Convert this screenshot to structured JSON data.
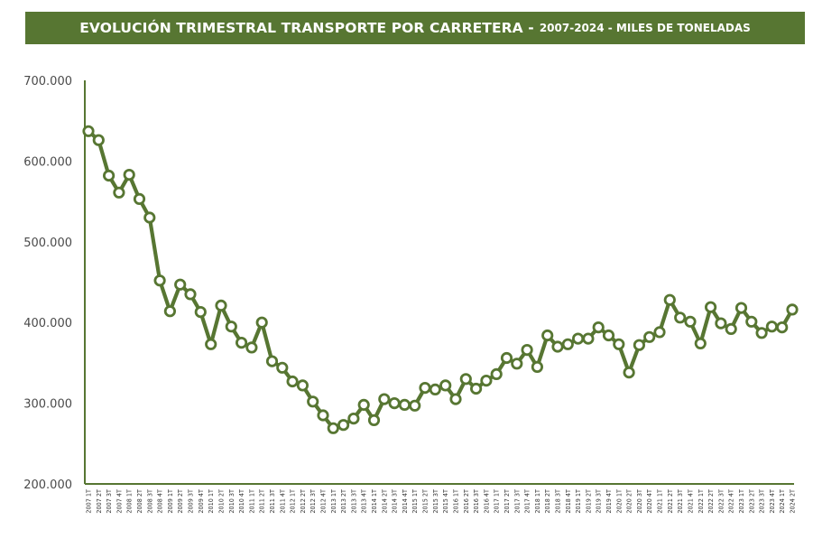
{
  "title": {
    "main": "EVOLUCIÓN TRIMESTRAL TRANSPORTE POR CARRETERA -",
    "sub": "2007-2024 - MILES DE TONELADAS"
  },
  "colors": {
    "banner": "#577632",
    "line": "#577632",
    "marker_fill": "#ffffff"
  },
  "chart_data": {
    "type": "line",
    "ylim": [
      200000,
      700000
    ],
    "yticks": [
      200000,
      300000,
      400000,
      500000,
      600000,
      700000
    ],
    "ytick_labels": [
      "200.000",
      "300.000",
      "400.000",
      "500.000",
      "600.000",
      "700.000"
    ],
    "grid": false,
    "legend": "none",
    "categories": [
      "2007 1T",
      "2007 2T",
      "2007 3T",
      "2007 4T",
      "2008 1T",
      "2008 2T",
      "2008 3T",
      "2008 4T",
      "2009 1T",
      "2009 2T",
      "2009 3T",
      "2009 4T",
      "2010 1T",
      "2010 2T",
      "2010 3T",
      "2010 4T",
      "2011 1T",
      "2011 2T",
      "2011 3T",
      "2011 4T",
      "2012 1T",
      "2012 2T",
      "2012 3T",
      "2012 4T",
      "2013 1T",
      "2013 2T",
      "2013 3T",
      "2013 4T",
      "2014 1T",
      "2014 2T",
      "2014 3T",
      "2014 4T",
      "2015 1T",
      "2015 2T",
      "2015 3T",
      "2015 4T",
      "2016 1T",
      "2016 2T",
      "2016 3T",
      "2016 4T",
      "2017 1T",
      "2017 2T",
      "2017 3T",
      "2017 4T",
      "2018 1T",
      "2018 2T",
      "2018 3T",
      "2018 4T",
      "2019 1T",
      "2019 2T",
      "2019 3T",
      "2019 4T",
      "2020 1T",
      "2020 2T",
      "2020 3T",
      "2020 4T",
      "2021 1T",
      "2021 2T",
      "2021 3T",
      "2021 4T",
      "2022 1T",
      "2022 2T",
      "2022 3T",
      "2022 4T",
      "2023 1T",
      "2023 2T",
      "2023 3T",
      "2023 4T",
      "2024 1T",
      "2024 2T"
    ],
    "series": [
      {
        "values": [
          637000,
          626000,
          582000,
          561000,
          583000,
          553000,
          530000,
          452000,
          414000,
          447000,
          435000,
          413000,
          373000,
          421000,
          395000,
          375000,
          369000,
          400000,
          352000,
          344000,
          327000,
          322000,
          302000,
          285000,
          269000,
          273000,
          281000,
          298000,
          279000,
          305000,
          300000,
          298000,
          297000,
          319000,
          317000,
          322000,
          305000,
          330000,
          318000,
          328000,
          336000,
          356000,
          349000,
          366000,
          345000,
          384000,
          370000,
          373000,
          380000,
          380000,
          394000,
          384000,
          373000,
          338000,
          372000,
          382000,
          388000,
          428000,
          406000,
          401000,
          374000,
          419000,
          399000,
          392000,
          418000,
          401000,
          387000,
          395000,
          394000,
          416000
        ]
      }
    ]
  }
}
